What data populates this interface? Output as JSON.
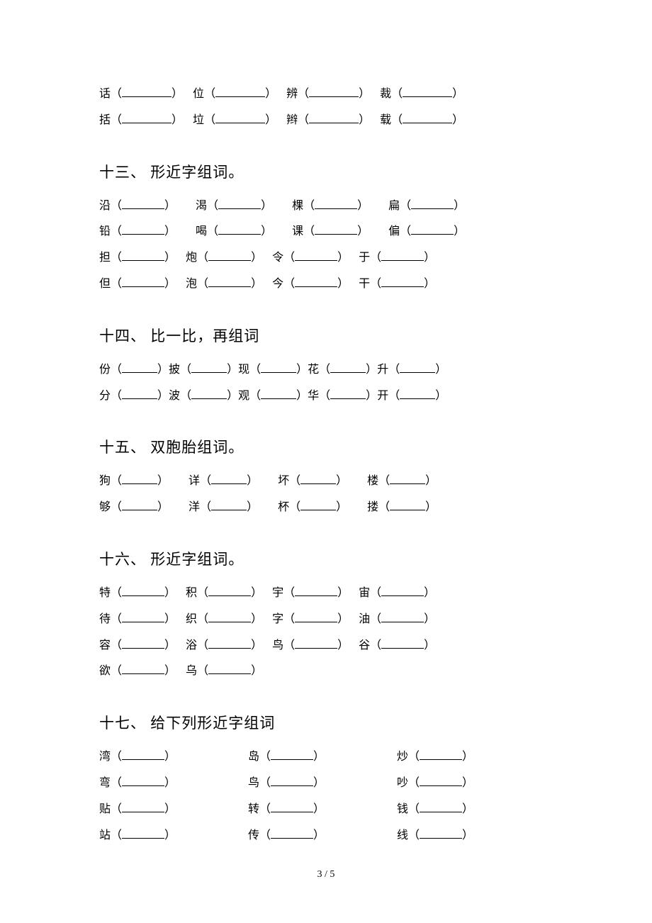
{
  "footer": "3 / 5",
  "top_rows": [
    {
      "items": [
        "话",
        "位",
        "辨",
        "裁"
      ],
      "bw": "w70",
      "gap": "gap14"
    },
    {
      "items": [
        "括",
        "垃",
        "辫",
        "载"
      ],
      "bw": "w70",
      "gap": "gap14"
    }
  ],
  "sections": [
    {
      "title": "十三、 形近字组词。",
      "style": "4col",
      "rows": [
        {
          "items": [
            "沿",
            "渴",
            "棵",
            "扁"
          ],
          "bw": "w60",
          "gap": "gap28"
        },
        {
          "items": [
            "铅",
            "喝",
            "课",
            "偏"
          ],
          "bw": "w60",
          "gap": "gap28"
        },
        {
          "items": [
            "担",
            "炮",
            "令",
            "于"
          ],
          "bw": "w60",
          "gap": "gap14"
        },
        {
          "items": [
            "但",
            "泡",
            "今",
            "干"
          ],
          "bw": "w60",
          "gap": "gap14"
        }
      ]
    },
    {
      "title": "十四、 比一比，再组词",
      "style": "5col",
      "rows": [
        {
          "items": [
            "份",
            "披",
            "现",
            "花",
            "升"
          ],
          "bw": "w50",
          "gap": "gap8"
        },
        {
          "items": [
            "分",
            "波",
            "观",
            "华",
            "开"
          ],
          "bw": "w50",
          "gap": "gap8"
        }
      ]
    },
    {
      "title": "十五、 双胞胎组词。",
      "style": "4col",
      "rows": [
        {
          "items": [
            "狗",
            "详",
            "坏",
            "楼"
          ],
          "bw": "w50",
          "gap": "gap28"
        },
        {
          "items": [
            "够",
            "洋",
            "杯",
            "搂"
          ],
          "bw": "w50",
          "gap": "gap28"
        }
      ]
    },
    {
      "title": "十六、 形近字组词。",
      "style": "4col",
      "rows": [
        {
          "items": [
            "特",
            "积",
            "宇",
            "宙"
          ],
          "bw": "w60",
          "gap": "gap14"
        },
        {
          "items": [
            "待",
            "织",
            "字",
            "油"
          ],
          "bw": "w60",
          "gap": "gap14"
        },
        {
          "items": [
            "容",
            "浴",
            "鸟",
            "谷"
          ],
          "bw": "w60",
          "gap": "gap14"
        },
        {
          "items": [
            "欲",
            "乌"
          ],
          "bw": "w60",
          "gap": "gap14"
        }
      ]
    },
    {
      "title": "十七、 给下列形近字组词",
      "style": "3col",
      "rows": [
        {
          "items": [
            "湾",
            "岛",
            "炒"
          ],
          "bw": "w60"
        },
        {
          "items": [
            "弯",
            "鸟",
            "吵"
          ],
          "bw": "w60"
        },
        {
          "items": [
            "贴",
            "转",
            "钱"
          ],
          "bw": "w60"
        },
        {
          "items": [
            "站",
            "传",
            "线"
          ],
          "bw": "w60"
        }
      ]
    }
  ]
}
